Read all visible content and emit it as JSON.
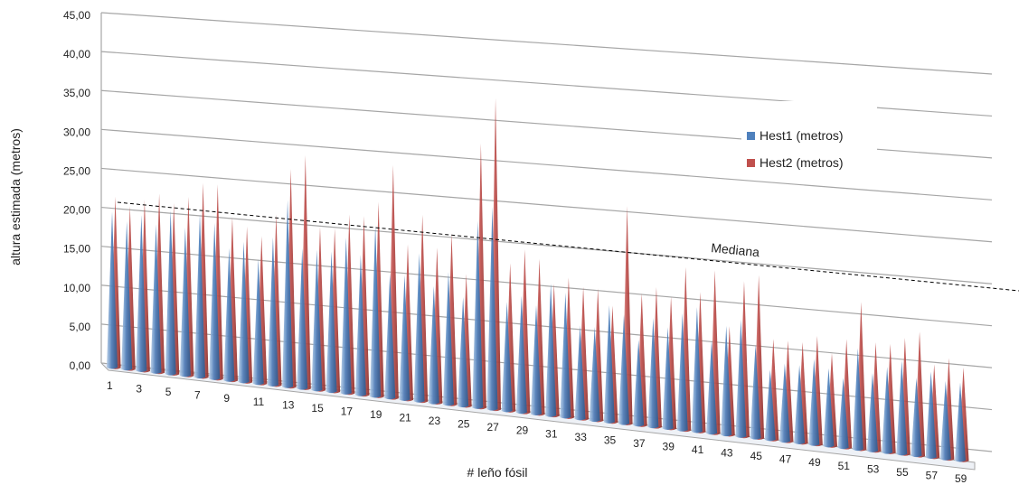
{
  "chart_data": {
    "type": "bar",
    "style": "3d-cone",
    "title": "",
    "xlabel": "# leño fósil",
    "ylabel": "altura estimada  (metros)",
    "ylim": [
      0,
      45
    ],
    "yticks": [
      "0,00",
      "5,00",
      "10,00",
      "15,00",
      "20,00",
      "25,00",
      "30,00",
      "35,00",
      "40,00",
      "45,00"
    ],
    "xtick_labels": [
      "1",
      "3",
      "5",
      "7",
      "9",
      "11",
      "13",
      "15",
      "17",
      "19",
      "21",
      "23",
      "25",
      "27",
      "29",
      "31",
      "33",
      "35",
      "37",
      "39",
      "41",
      "43",
      "45",
      "47",
      "49",
      "51",
      "53",
      "55",
      "57",
      "59"
    ],
    "grid": true,
    "legend_position": "right",
    "x": [
      1,
      2,
      3,
      4,
      5,
      6,
      7,
      8,
      9,
      10,
      11,
      12,
      13,
      14,
      15,
      16,
      17,
      18,
      19,
      20,
      21,
      22,
      23,
      24,
      25,
      26,
      27,
      28,
      29,
      30,
      31,
      32,
      33,
      34,
      35,
      36,
      37,
      38,
      39,
      40,
      41,
      42,
      43,
      44,
      45,
      46,
      47,
      48,
      49,
      50,
      51,
      52,
      53,
      54,
      55,
      56,
      57,
      58,
      59
    ],
    "series": [
      {
        "name": "Hest1 (metros)",
        "color": "#4f81bd",
        "values": [
          20,
          19,
          20,
          19,
          21,
          19,
          21,
          20,
          17,
          18,
          16,
          19,
          24,
          18,
          18,
          18,
          20,
          18,
          22,
          16,
          16,
          19,
          15,
          17,
          14,
          24,
          26,
          14,
          15,
          14,
          17,
          16,
          12,
          12,
          15,
          14,
          11,
          14,
          13,
          15,
          16,
          12,
          14,
          15,
          12,
          9,
          10,
          10,
          11,
          10,
          9,
          13,
          10,
          11,
          12,
          10,
          11,
          10,
          10
        ]
      },
      {
        "name": "Hest2 (metros)",
        "color": "#c0504d",
        "values": [
          22,
          21,
          22,
          23,
          22,
          23,
          25,
          25,
          21,
          20,
          19,
          22,
          28,
          30,
          21,
          21,
          23,
          23,
          25,
          30,
          20,
          24,
          20,
          22,
          17,
          34,
          40,
          19,
          21,
          20,
          17,
          18,
          17,
          17,
          15,
          28,
          17,
          18,
          17,
          21,
          18,
          21,
          14,
          20,
          21,
          13,
          13,
          13,
          14,
          12,
          14,
          19,
          14,
          14,
          15,
          16,
          12,
          13,
          12
        ]
      }
    ],
    "annotations": [
      {
        "text": "Mediana",
        "type": "dashed-line"
      }
    ]
  }
}
